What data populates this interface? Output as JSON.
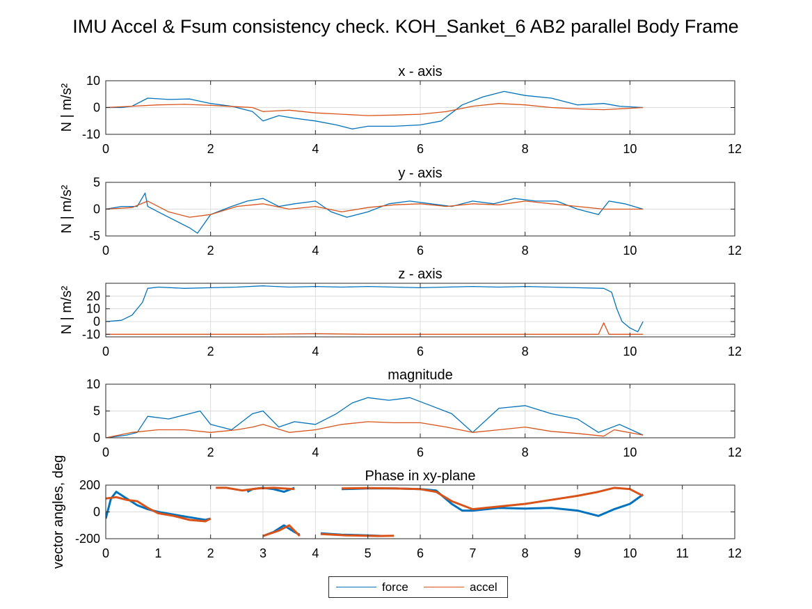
{
  "figure_title": "IMU Accel & Fsum consistency check. KOH_Sanket_6     AB2     parallel  Body Frame",
  "colors": {
    "force": "#0072BD",
    "accel": "#D95319",
    "grid": "#dcdcdc",
    "axis": "#262626"
  },
  "legend": {
    "items": [
      {
        "label": "force",
        "color": "#0072BD"
      },
      {
        "label": "accel",
        "color": "#D95319"
      }
    ]
  },
  "chart_data": [
    {
      "type": "line",
      "title": "x - axis",
      "ylabel": "N | m/s²",
      "xlim": [
        0,
        12
      ],
      "ylim": [
        -10,
        10
      ],
      "xticks": [
        0,
        2,
        4,
        6,
        8,
        10,
        12
      ],
      "yticks": [
        -10,
        0,
        10
      ],
      "grid": true,
      "series": [
        {
          "name": "force",
          "x": [
            0,
            0.3,
            0.5,
            0.8,
            1.2,
            1.6,
            2.0,
            2.4,
            2.8,
            3.0,
            3.3,
            3.6,
            4.0,
            4.4,
            4.7,
            5.0,
            5.5,
            6.0,
            6.4,
            6.8,
            7.2,
            7.6,
            8.0,
            8.5,
            9.0,
            9.5,
            9.8,
            10.25
          ],
          "y": [
            0,
            0,
            0.5,
            3.5,
            3.0,
            3.2,
            1.5,
            0.5,
            -1.5,
            -5,
            -3,
            -4,
            -5,
            -6.5,
            -8,
            -7,
            -7,
            -6.5,
            -5,
            1,
            4,
            6,
            4.5,
            3.5,
            1,
            1.5,
            0.5,
            0
          ]
        },
        {
          "name": "accel",
          "x": [
            0,
            0.5,
            1.0,
            1.5,
            2.0,
            2.5,
            2.8,
            3.0,
            3.5,
            4.0,
            4.5,
            5.0,
            5.5,
            6.0,
            6.5,
            7.0,
            7.5,
            8.0,
            8.5,
            9.0,
            9.5,
            10.25
          ],
          "y": [
            0,
            0.5,
            1.0,
            1.2,
            0.8,
            0.3,
            0,
            -1.5,
            -1.0,
            -2.0,
            -2.5,
            -3.0,
            -2.8,
            -2.5,
            -1.5,
            0.5,
            1.5,
            1.0,
            0,
            -0.5,
            -0.8,
            0
          ]
        }
      ]
    },
    {
      "type": "line",
      "title": "y - axis",
      "ylabel": "N | m/s²",
      "xlim": [
        0,
        12
      ],
      "ylim": [
        -5,
        5
      ],
      "xticks": [
        0,
        2,
        4,
        6,
        8,
        10,
        12
      ],
      "yticks": [
        -5,
        0,
        5
      ],
      "grid": true,
      "series": [
        {
          "name": "force",
          "x": [
            0,
            0.3,
            0.6,
            0.75,
            0.8,
            1.0,
            1.3,
            1.6,
            1.75,
            2.0,
            2.4,
            2.7,
            3.0,
            3.3,
            3.6,
            4.0,
            4.3,
            4.6,
            5.0,
            5.4,
            5.8,
            6.2,
            6.6,
            7.0,
            7.4,
            7.8,
            8.2,
            8.6,
            9.0,
            9.4,
            9.6,
            9.9,
            10.25
          ],
          "y": [
            0,
            0.5,
            0.5,
            3.0,
            0.5,
            -0.5,
            -2.0,
            -3.5,
            -4.5,
            -1.0,
            0.5,
            1.5,
            2.0,
            0.5,
            1.0,
            1.5,
            -0.5,
            -1.5,
            -0.5,
            1.0,
            1.5,
            1.0,
            0.5,
            1.5,
            1.0,
            2.0,
            1.5,
            1.5,
            0,
            -1.0,
            1.5,
            1.0,
            0
          ]
        },
        {
          "name": "accel",
          "x": [
            0,
            0.5,
            0.8,
            1.2,
            1.6,
            2.0,
            2.5,
            3.0,
            3.5,
            4.0,
            4.5,
            5.0,
            5.5,
            6.0,
            6.5,
            7.0,
            7.5,
            8.0,
            8.5,
            9.0,
            9.5,
            10.25
          ],
          "y": [
            0,
            0.3,
            1.5,
            -0.5,
            -1.5,
            -1.0,
            0.5,
            1.0,
            0,
            0.5,
            -0.5,
            0.3,
            0.8,
            1.0,
            0.5,
            1.0,
            0.8,
            1.5,
            1.0,
            0.5,
            0,
            0
          ]
        }
      ]
    },
    {
      "type": "line",
      "title": "z - axis",
      "ylabel": "N | m/s²",
      "xlim": [
        0,
        12
      ],
      "ylim": [
        -12,
        30
      ],
      "xticks": [
        0,
        2,
        4,
        6,
        8,
        10,
        12
      ],
      "yticks": [
        -10,
        0,
        10,
        20
      ],
      "grid": true,
      "series": [
        {
          "name": "force",
          "x": [
            0,
            0.3,
            0.5,
            0.7,
            0.8,
            1.0,
            1.5,
            2.0,
            2.5,
            3.0,
            3.5,
            4.0,
            4.5,
            5.0,
            5.5,
            6.0,
            6.5,
            7.0,
            7.5,
            8.0,
            8.5,
            9.0,
            9.5,
            9.65,
            9.75,
            9.85,
            10.0,
            10.15,
            10.25
          ],
          "y": [
            0,
            1,
            5,
            15,
            26,
            27,
            26,
            26.5,
            27,
            28,
            27,
            27.5,
            27,
            27.5,
            27,
            26.5,
            27,
            27.5,
            27,
            27.5,
            27,
            26.5,
            26,
            23,
            10,
            0,
            -5,
            -8,
            0
          ]
        },
        {
          "name": "accel",
          "x": [
            0,
            1.0,
            2.0,
            3.0,
            4.0,
            5.0,
            6.0,
            7.0,
            8.0,
            9.0,
            9.4,
            9.5,
            9.6,
            10.0,
            10.25
          ],
          "y": [
            -10,
            -10,
            -10,
            -10,
            -9.5,
            -10,
            -10,
            -10,
            -10,
            -10,
            -10,
            -1,
            -10,
            -10,
            -10
          ]
        }
      ]
    },
    {
      "type": "line",
      "title": "magnitude",
      "ylabel": "",
      "xlim": [
        0,
        12
      ],
      "ylim": [
        0,
        10
      ],
      "xticks": [
        0,
        2,
        4,
        6,
        8,
        10,
        12
      ],
      "yticks": [
        0,
        5,
        10
      ],
      "grid": true,
      "series": [
        {
          "name": "force",
          "x": [
            0,
            0.4,
            0.6,
            0.8,
            1.2,
            1.6,
            1.8,
            2.0,
            2.4,
            2.8,
            3.0,
            3.3,
            3.6,
            4.0,
            4.4,
            4.7,
            5.0,
            5.4,
            5.8,
            6.2,
            6.6,
            7.0,
            7.5,
            8.0,
            8.5,
            9.0,
            9.4,
            9.8,
            10.25
          ],
          "y": [
            0,
            0.5,
            1.0,
            4.0,
            3.5,
            4.5,
            5.0,
            2.5,
            1.5,
            4.5,
            5.0,
            2.0,
            3.0,
            2.5,
            4.5,
            6.5,
            7.5,
            7.0,
            7.5,
            6.0,
            4.5,
            1.0,
            5.5,
            6.0,
            4.5,
            3.5,
            1.0,
            2.5,
            0.5
          ]
        },
        {
          "name": "accel",
          "x": [
            0,
            0.5,
            1.0,
            1.5,
            2.0,
            2.5,
            2.8,
            3.0,
            3.5,
            4.0,
            4.5,
            5.0,
            5.5,
            6.0,
            6.5,
            7.0,
            7.5,
            8.0,
            8.5,
            9.0,
            9.5,
            9.7,
            10.25
          ],
          "y": [
            0,
            1.0,
            1.5,
            1.5,
            1.0,
            1.5,
            2.0,
            2.5,
            1.0,
            1.5,
            2.5,
            3.0,
            2.8,
            2.8,
            2.0,
            1.0,
            1.5,
            2.0,
            1.2,
            0.8,
            0.3,
            1.5,
            0.5
          ]
        }
      ]
    },
    {
      "type": "line",
      "title": "Phase in xy-plane",
      "ylabel": "vector angles, deg",
      "xlim": [
        0,
        12
      ],
      "ylim": [
        -200,
        200
      ],
      "xticks": [
        0,
        1,
        2,
        3,
        4,
        5,
        6,
        7,
        8,
        9,
        10,
        11,
        12
      ],
      "yticks": [
        -200,
        0,
        200
      ],
      "grid": true,
      "series": [
        {
          "name": "force",
          "x": [
            0,
            0.1,
            0.2,
            0.4,
            0.6,
            0.8,
            1.0,
            1.3,
            1.6,
            1.9,
            2.0
          ],
          "y": [
            -50,
            100,
            150,
            100,
            50,
            20,
            0,
            -20,
            -40,
            -60,
            -50
          ]
        },
        {
          "name": "force",
          "x": [
            2.7,
            2.8,
            3.0,
            3.2,
            3.4,
            3.6
          ],
          "y": [
            150,
            170,
            180,
            170,
            150,
            180
          ]
        },
        {
          "name": "force",
          "x": [
            3.0,
            3.2,
            3.4,
            3.6,
            3.7
          ],
          "y": [
            -180,
            -150,
            -100,
            -150,
            -170
          ]
        },
        {
          "name": "force",
          "x": [
            4.1,
            4.5,
            5.0,
            5.3
          ],
          "y": [
            -160,
            -170,
            -175,
            -180
          ]
        },
        {
          "name": "force",
          "x": [
            4.5,
            5.0,
            5.5,
            6.0,
            6.3,
            6.6,
            6.8,
            7.0,
            7.5,
            8.0,
            8.5,
            9.0,
            9.4,
            9.7,
            10.0,
            10.25
          ],
          "y": [
            170,
            175,
            175,
            170,
            160,
            60,
            10,
            10,
            30,
            25,
            30,
            10,
            -30,
            20,
            60,
            130
          ]
        },
        {
          "name": "accel",
          "x": [
            0,
            0.2,
            0.4,
            0.6,
            0.8,
            1.0,
            1.3,
            1.6,
            1.9,
            2.0
          ],
          "y": [
            100,
            110,
            90,
            80,
            30,
            -10,
            -30,
            -60,
            -70,
            -50
          ]
        },
        {
          "name": "accel",
          "x": [
            2.1,
            2.3,
            2.6,
            2.9,
            3.2,
            3.6
          ],
          "y": [
            180,
            180,
            160,
            175,
            180,
            170
          ]
        },
        {
          "name": "accel",
          "x": [
            3.0,
            3.3,
            3.5,
            3.7
          ],
          "y": [
            -180,
            -140,
            -100,
            -180
          ]
        },
        {
          "name": "accel",
          "x": [
            4.1,
            4.6,
            5.2,
            5.5
          ],
          "y": [
            -165,
            -175,
            -180,
            -178
          ]
        },
        {
          "name": "accel",
          "x": [
            4.5,
            5.0,
            5.5,
            6.0,
            6.3,
            6.6,
            7.0,
            7.5,
            8.0,
            8.5,
            9.0,
            9.4,
            9.7,
            10.0,
            10.25
          ],
          "y": [
            175,
            178,
            175,
            170,
            150,
            80,
            20,
            40,
            60,
            90,
            120,
            150,
            180,
            170,
            120
          ]
        }
      ]
    }
  ]
}
